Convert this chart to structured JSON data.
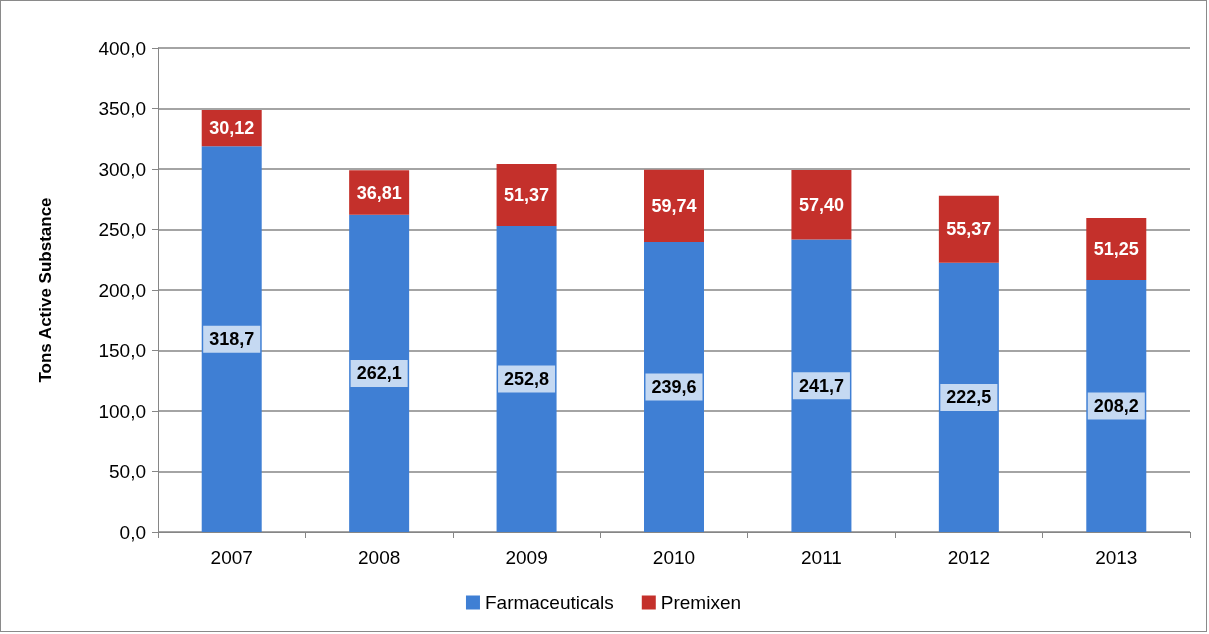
{
  "chart_data": {
    "type": "bar",
    "ylabel": "Tons Active Substance",
    "categories": [
      "2007",
      "2008",
      "2009",
      "2010",
      "2011",
      "2012",
      "2013"
    ],
    "series": [
      {
        "name": "Farmaceuticals",
        "color": "#3f7fd4",
        "values": [
          318.7,
          262.1,
          252.8,
          239.6,
          241.7,
          222.5,
          208.2
        ],
        "value_labels": [
          "318,7",
          "262,1",
          "252,8",
          "239,6",
          "241,7",
          "222,5",
          "208,2"
        ]
      },
      {
        "name": "Premixen",
        "color": "#c4302b",
        "values": [
          30.12,
          36.81,
          51.37,
          59.74,
          57.4,
          55.37,
          51.25
        ],
        "value_labels": [
          "30,12",
          "36,81",
          "51,37",
          "59,74",
          "57,40",
          "55,37",
          "51,25"
        ]
      }
    ],
    "stacked": true,
    "ylim": [
      0,
      400
    ],
    "yticks": [
      {
        "value": 0,
        "label": "0,0"
      },
      {
        "value": 50,
        "label": "50,0"
      },
      {
        "value": 100,
        "label": "100,0"
      },
      {
        "value": 150,
        "label": "150,0"
      },
      {
        "value": 200,
        "label": "200,0"
      },
      {
        "value": 250,
        "label": "250,0"
      },
      {
        "value": 300,
        "label": "300,0"
      },
      {
        "value": 350,
        "label": "350,0"
      },
      {
        "value": 400,
        "label": "400,0"
      }
    ],
    "grid": "y",
    "legend": "bottom"
  }
}
